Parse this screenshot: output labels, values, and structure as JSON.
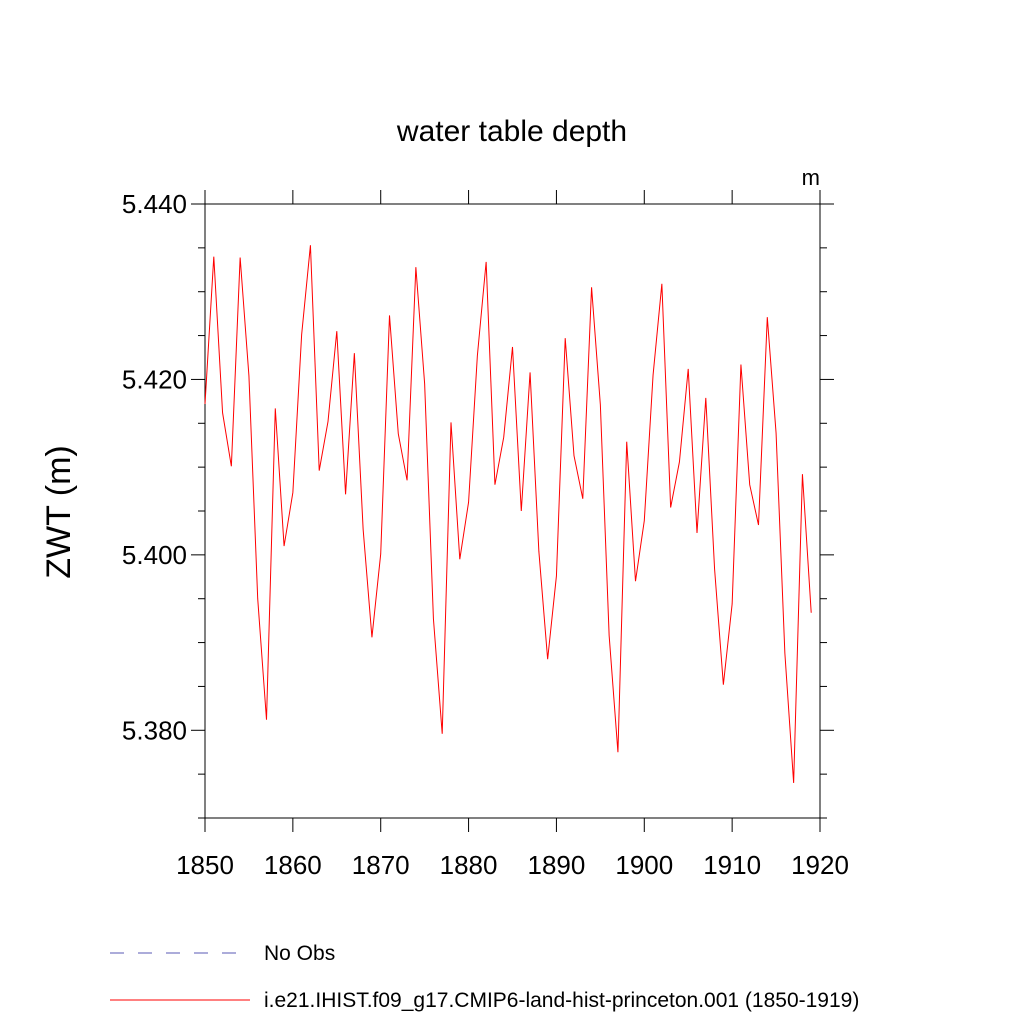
{
  "chart_data": {
    "type": "line",
    "title": "water table depth",
    "units_label": "m",
    "ylabel": "ZWT  (m)",
    "xlabel": "",
    "xlim": [
      1850,
      1920
    ],
    "ylim": [
      5.37,
      5.44
    ],
    "xticks": [
      1850,
      1860,
      1870,
      1880,
      1890,
      1900,
      1910,
      1920
    ],
    "xtick_labels": [
      "1850",
      "1860",
      "1870",
      "1880",
      "1890",
      "1900",
      "1910",
      "1920"
    ],
    "yticks": [
      5.38,
      5.4,
      5.42,
      5.44
    ],
    "ytick_labels": [
      "5.380",
      "5.400",
      "5.420",
      "5.440"
    ],
    "y_minor_step": 0.005,
    "x_minor_step": 10,
    "grid": false,
    "legend_position": "bottom",
    "series": [
      {
        "name": "i.e21.IHIST.f09_g17.CMIP6-land-hist-princeton.001 (1850-1919)",
        "color": "#ff0000",
        "style": "solid",
        "x": [
          1850,
          1851,
          1852,
          1853,
          1854,
          1855,
          1856,
          1857,
          1858,
          1859,
          1860,
          1861,
          1862,
          1863,
          1864,
          1865,
          1866,
          1867,
          1868,
          1869,
          1870,
          1871,
          1872,
          1873,
          1874,
          1875,
          1876,
          1877,
          1878,
          1879,
          1880,
          1881,
          1882,
          1883,
          1884,
          1885,
          1886,
          1887,
          1888,
          1889,
          1890,
          1891,
          1892,
          1893,
          1894,
          1895,
          1896,
          1897,
          1898,
          1899,
          1900,
          1901,
          1902,
          1903,
          1904,
          1905,
          1906,
          1907,
          1908,
          1909,
          1910,
          1911,
          1912,
          1913,
          1914,
          1915,
          1916,
          1917,
          1918,
          1919
        ],
        "values": [
          5.4172,
          5.434,
          5.4162,
          5.4101,
          5.4339,
          5.4204,
          5.395,
          5.3812,
          5.4167,
          5.401,
          5.4071,
          5.4251,
          5.4353,
          5.4096,
          5.4152,
          5.4255,
          5.4069,
          5.423,
          5.4029,
          5.3906,
          5.4001,
          5.4273,
          5.4138,
          5.4085,
          5.4328,
          5.4195,
          5.3927,
          5.3796,
          5.4151,
          5.3995,
          5.406,
          5.4227,
          5.4334,
          5.408,
          5.4134,
          5.4237,
          5.405,
          5.4208,
          5.4004,
          5.3881,
          5.3976,
          5.4247,
          5.4113,
          5.4064,
          5.4305,
          5.4171,
          5.3908,
          5.3775,
          5.4129,
          5.397,
          5.4039,
          5.4205,
          5.4309,
          5.4054,
          5.4106,
          5.4212,
          5.4025,
          5.4179,
          5.3984,
          5.3852,
          5.3944,
          5.4217,
          5.408,
          5.4034,
          5.4271,
          5.4139,
          5.3888,
          5.374,
          5.4092,
          5.3934
        ]
      },
      {
        "name": "No Obs",
        "color": "#5a5ab4",
        "style": "dashed",
        "x": [],
        "values": []
      }
    ]
  }
}
